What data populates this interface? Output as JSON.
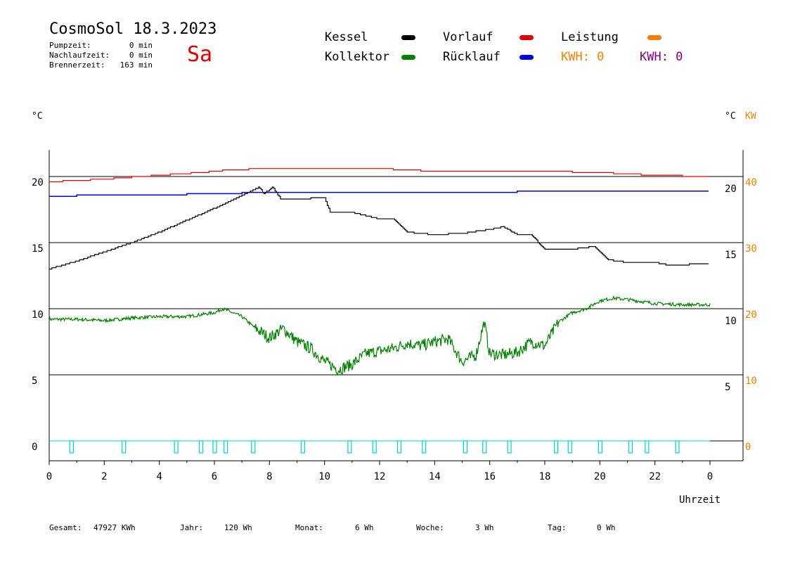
{
  "header": {
    "title": "CosmoSol 18.3.2023",
    "day": "Sa",
    "stats": [
      {
        "label": "Pumpzeit:",
        "value": "0 min"
      },
      {
        "label": "Nachlaufzeit:",
        "value": "0 min"
      },
      {
        "label": "Brennerzeit:",
        "value": "163 min"
      }
    ]
  },
  "legend": {
    "kessel": "Kessel",
    "kollektor": "Kollektor",
    "vorlauf": "Vorlauf",
    "ruecklauf": "Rücklauf",
    "leistung": "Leistung",
    "kwh1": "KWH: 0",
    "kwh2": "KWH: 0"
  },
  "colors": {
    "kessel": "#000000",
    "kollektor": "#008000",
    "vorlauf": "#e00000",
    "ruecklauf": "#0000e0",
    "leistung": "#f08000",
    "kwh2": "#800080",
    "pump": "#00d0d0"
  },
  "footer": {
    "gesamt_label": "Gesamt:",
    "gesamt_value": "47927 KWh",
    "jahr_label": "Jahr:",
    "jahr_value": "120 Wh",
    "monat_label": "Monat:",
    "monat_value": "6 Wh",
    "woche_label": "Woche:",
    "woche_value": "3 Wh",
    "tag_label": "Tag:",
    "tag_value": "0 Wh"
  },
  "chart_data": {
    "type": "line",
    "xlabel": "Uhrzeit",
    "ylabel_left": "°C",
    "ylabel_right_1": "°C",
    "ylabel_right_2": "KW",
    "xlim": [
      0,
      24
    ],
    "ylim": [
      -1.5,
      22
    ],
    "x_tick_labels": [
      "0",
      "2",
      "4",
      "6",
      "8",
      "10",
      "12",
      "14",
      "16",
      "18",
      "20",
      "22",
      "0"
    ],
    "y_left_ticks": [
      0,
      5,
      10,
      15,
      20
    ],
    "y_right_ticks": [
      5,
      10,
      15,
      20
    ],
    "y_right_kw_ticks": [
      0,
      10,
      20,
      30,
      40
    ],
    "grid_y": [
      0,
      5,
      10,
      15,
      20
    ],
    "series": [
      {
        "name": "Vorlauf",
        "x": [
          0,
          2,
          4,
          5.5,
          6.5,
          8,
          10,
          12,
          13,
          14,
          16,
          18,
          20,
          22,
          24
        ],
        "y": [
          19.6,
          19.8,
          20.1,
          20.3,
          20.5,
          20.6,
          20.6,
          20.6,
          20.5,
          20.4,
          20.4,
          20.4,
          20.3,
          20.1,
          20.0
        ]
      },
      {
        "name": "Rücklauf",
        "x": [
          0,
          2,
          4,
          6,
          8,
          10,
          12,
          14,
          16,
          18,
          20,
          22,
          24
        ],
        "y": [
          18.5,
          18.6,
          18.6,
          18.7,
          18.8,
          18.8,
          18.8,
          18.8,
          18.8,
          18.9,
          18.9,
          18.9,
          18.9
        ]
      },
      {
        "name": "Kessel",
        "x": [
          0,
          1,
          2,
          3,
          4,
          5,
          6,
          7,
          7.6,
          7.8,
          8.1,
          8.4,
          9,
          10,
          10.2,
          11,
          12,
          12.5,
          13,
          14,
          15,
          16,
          16.5,
          17,
          17.5,
          18,
          19,
          19.8,
          20.3,
          21,
          22,
          22.5,
          24
        ],
        "y": [
          13.0,
          13.6,
          14.3,
          15.0,
          15.8,
          16.7,
          17.6,
          18.6,
          19.2,
          18.7,
          19.2,
          18.3,
          18.3,
          18.4,
          17.3,
          17.3,
          16.8,
          16.8,
          15.8,
          15.6,
          15.7,
          16.0,
          16.2,
          15.6,
          15.6,
          14.5,
          14.5,
          14.7,
          13.7,
          13.5,
          13.5,
          13.3,
          13.4
        ]
      },
      {
        "name": "Kollektor",
        "x": [
          0,
          1,
          2,
          3,
          4,
          5,
          6,
          6.3,
          7,
          7.5,
          8,
          8.5,
          9,
          9.5,
          10,
          10.5,
          11,
          11.5,
          12,
          12.5,
          13,
          13.5,
          14,
          14.5,
          15,
          15.5,
          15.8,
          16,
          16.5,
          17,
          17.5,
          18,
          18.5,
          19,
          19.5,
          20,
          20.5,
          21,
          22,
          23,
          24
        ],
        "y": [
          9.2,
          9.2,
          9.1,
          9.3,
          9.4,
          9.4,
          9.7,
          10.0,
          9.4,
          8.5,
          7.8,
          8.5,
          7.5,
          7.0,
          6.0,
          5.4,
          5.8,
          6.6,
          6.8,
          7.0,
          7.4,
          7.2,
          7.5,
          7.7,
          6.0,
          6.5,
          9.0,
          6.6,
          6.5,
          6.7,
          7.5,
          7.2,
          9.0,
          9.7,
          10.0,
          10.6,
          10.8,
          10.7,
          10.4,
          10.3,
          10.3
        ]
      },
      {
        "name": "Pumpe",
        "x": [
          0.8,
          2.7,
          4.6,
          5.5,
          6.0,
          6.4,
          7.4,
          9.2,
          10.9,
          11.8,
          12.7,
          13.6,
          15.1,
          15.8,
          16.7,
          18.4,
          18.9,
          20.0,
          21.1,
          21.7,
          22.8
        ],
        "y": [
          0,
          0,
          0,
          0,
          0,
          0,
          0,
          0,
          0,
          0,
          0,
          0,
          0,
          0,
          0,
          0,
          0,
          0,
          0,
          0,
          0
        ]
      }
    ]
  }
}
